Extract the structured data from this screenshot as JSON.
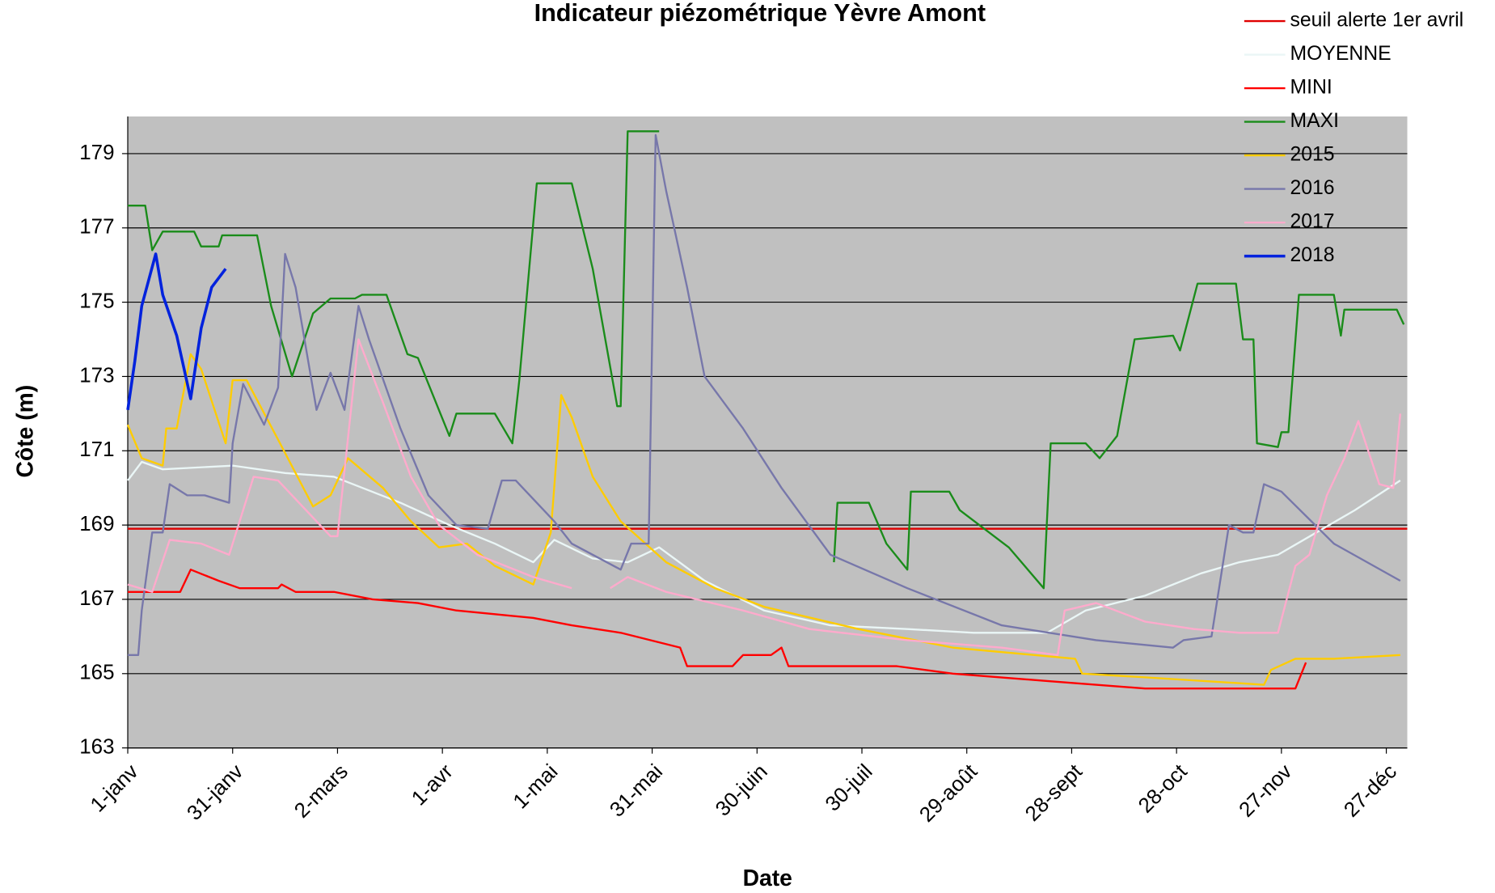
{
  "chart_data": {
    "type": "line",
    "title": "Indicateur piézométrique Yèvre Amont",
    "xlabel": "Date",
    "ylabel": "Côte (m)",
    "xlim": [
      0,
      366
    ],
    "ylim": [
      163,
      180
    ],
    "xticks": [
      {
        "value": 0,
        "label": "1-janv"
      },
      {
        "value": 30,
        "label": "31-janv"
      },
      {
        "value": 60,
        "label": "2-mars"
      },
      {
        "value": 90,
        "label": "1-avr"
      },
      {
        "value": 120,
        "label": "1-mai"
      },
      {
        "value": 150,
        "label": "31-mai"
      },
      {
        "value": 180,
        "label": "30-juin"
      },
      {
        "value": 210,
        "label": "30-juil"
      },
      {
        "value": 240,
        "label": "29-août"
      },
      {
        "value": 270,
        "label": "28-sept"
      },
      {
        "value": 300,
        "label": "28-oct"
      },
      {
        "value": 330,
        "label": "27-nov"
      },
      {
        "value": 360,
        "label": "27-déc"
      }
    ],
    "yticks": [
      163,
      165,
      167,
      169,
      171,
      173,
      175,
      177,
      179
    ],
    "grid": true,
    "legend": "upper right",
    "series": [
      {
        "name": "seuil alerte 1er avril",
        "color": "#e00000",
        "x": [
          0,
          366
        ],
        "values": [
          168.9,
          168.9
        ]
      },
      {
        "name": "MOYENNE",
        "color": "#eaf6f6",
        "x": [
          0,
          4,
          10,
          30,
          45,
          59,
          78,
          92,
          105,
          116,
          122,
          133,
          143,
          152,
          165,
          182,
          201,
          223,
          242,
          263,
          274,
          291,
          307,
          318,
          329,
          340,
          351,
          364
        ],
        "values": [
          170.2,
          170.7,
          170.5,
          170.6,
          170.4,
          170.3,
          169.6,
          169.0,
          168.5,
          168.0,
          168.6,
          168.1,
          168.0,
          168.4,
          167.5,
          166.7,
          166.3,
          166.2,
          166.1,
          166.1,
          166.7,
          167.1,
          167.7,
          168.0,
          168.2,
          168.8,
          169.4,
          170.2
        ]
      },
      {
        "name": "MINI",
        "color": "#ff0000",
        "x": [
          0,
          15,
          18,
          26,
          32,
          43,
          44,
          48,
          59,
          70,
          83,
          94,
          105,
          116,
          127,
          141,
          158,
          160,
          173,
          176,
          184,
          187,
          189,
          209,
          220,
          236,
          263,
          291,
          318,
          334,
          337
        ],
        "values": [
          167.2,
          167.2,
          167.8,
          167.5,
          167.3,
          167.3,
          167.4,
          167.2,
          167.2,
          167.0,
          166.9,
          166.7,
          166.6,
          166.5,
          166.3,
          166.1,
          165.7,
          165.2,
          165.2,
          165.5,
          165.5,
          165.7,
          165.2,
          165.2,
          165.2,
          165.0,
          164.8,
          164.6,
          164.6,
          164.6,
          165.3
        ]
      },
      {
        "name": "MAXI",
        "color": "#1a8c1a",
        "x": [
          0,
          5,
          7,
          10,
          19,
          21,
          26,
          27,
          37,
          41,
          47,
          53,
          58,
          65,
          67,
          74,
          80,
          83,
          92,
          94,
          105,
          110,
          112,
          117,
          127,
          133,
          140,
          141,
          143,
          152,
          177,
          202,
          203,
          212,
          217,
          223,
          224,
          235,
          238,
          252,
          262,
          264,
          274,
          278,
          283,
          288,
          299,
          301,
          306,
          317,
          319,
          322,
          323,
          329,
          330,
          332,
          335,
          345,
          347,
          348,
          363,
          365
        ],
        "values": [
          177.6,
          177.6,
          176.4,
          176.9,
          176.9,
          176.5,
          176.5,
          176.8,
          176.8,
          174.9,
          173.0,
          174.7,
          175.1,
          175.1,
          175.2,
          175.2,
          173.6,
          173.5,
          171.4,
          172.0,
          172.0,
          171.2,
          172.9,
          178.2,
          178.2,
          175.9,
          172.2,
          172.2,
          179.6,
          179.6,
          null,
          168.0,
          169.6,
          169.6,
          168.5,
          167.8,
          169.9,
          169.9,
          169.4,
          168.4,
          167.3,
          171.2,
          171.2,
          170.8,
          171.4,
          174.0,
          174.1,
          173.7,
          175.5,
          175.5,
          174.0,
          174.0,
          171.2,
          171.1,
          171.5,
          171.5,
          175.2,
          175.2,
          174.1,
          174.8,
          174.8,
          174.4
        ]
      },
      {
        "name": "2015",
        "color": "#ffcc00",
        "x": [
          0,
          4,
          10,
          11,
          14,
          18,
          21,
          28,
          30,
          34,
          43,
          53,
          58,
          63,
          73,
          81,
          89,
          97,
          105,
          116,
          121,
          124,
          127,
          133,
          141,
          154,
          168,
          182,
          209,
          236,
          271,
          273,
          291,
          325,
          327,
          334,
          345,
          364
        ],
        "values": [
          171.7,
          170.8,
          170.6,
          171.6,
          171.6,
          173.6,
          173.2,
          171.2,
          172.9,
          172.9,
          171.3,
          169.5,
          169.8,
          170.8,
          170.0,
          169.1,
          168.4,
          168.5,
          167.9,
          167.4,
          168.8,
          172.5,
          171.9,
          170.3,
          169.1,
          168.0,
          167.3,
          166.8,
          166.2,
          165.7,
          165.4,
          165.0,
          164.9,
          164.7,
          165.1,
          165.4,
          165.4,
          165.5
        ]
      },
      {
        "name": "2016",
        "color": "#7777aa",
        "x": [
          0,
          3,
          4,
          7,
          10,
          12,
          17,
          22,
          29,
          30,
          33,
          39,
          43,
          45,
          48,
          54,
          58,
          62,
          66,
          69,
          78,
          86,
          94,
          103,
          107,
          111,
          122,
          127,
          141,
          144,
          149,
          151,
          154,
          160,
          165,
          176,
          187,
          201,
          223,
          250,
          277,
          299,
          302,
          310,
          315,
          319,
          322,
          325,
          330,
          345,
          364
        ],
        "values": [
          165.5,
          165.5,
          166.7,
          168.8,
          168.8,
          170.1,
          169.8,
          169.8,
          169.6,
          171.2,
          172.8,
          171.7,
          172.7,
          176.3,
          175.4,
          172.1,
          173.1,
          172.1,
          174.9,
          174.0,
          171.6,
          169.8,
          169.0,
          168.9,
          170.2,
          170.2,
          169.1,
          168.5,
          167.8,
          168.5,
          168.5,
          179.5,
          178.0,
          175.4,
          173.0,
          171.6,
          170.0,
          168.2,
          167.3,
          166.3,
          165.9,
          165.7,
          165.9,
          166.0,
          169.0,
          168.8,
          168.8,
          170.1,
          169.9,
          168.5,
          167.5
        ]
      },
      {
        "name": "2017",
        "color": "#ffaacc",
        "x": [
          0,
          7,
          12,
          21,
          29,
          36,
          43,
          50,
          58,
          60,
          66,
          73,
          81,
          89,
          100,
          116,
          127,
          132,
          138,
          143,
          154,
          176,
          195,
          223,
          250,
          266,
          268,
          277,
          291,
          305,
          318,
          329,
          334,
          338,
          343,
          348,
          352,
          358,
          362,
          364
        ],
        "values": [
          167.4,
          167.2,
          168.6,
          168.5,
          168.2,
          170.3,
          170.2,
          169.5,
          168.7,
          168.7,
          174.0,
          172.3,
          170.3,
          169.0,
          168.2,
          167.6,
          167.3,
          null,
          167.3,
          167.6,
          167.2,
          166.7,
          166.2,
          165.9,
          165.7,
          165.5,
          166.7,
          166.9,
          166.4,
          166.2,
          166.1,
          166.1,
          167.9,
          168.2,
          169.8,
          170.8,
          171.8,
          170.1,
          170.0,
          172.0
        ]
      },
      {
        "name": "2018",
        "color": "#0022dd",
        "width": 3,
        "x": [
          0,
          2,
          4,
          8,
          10,
          14,
          18,
          21,
          24,
          28
        ],
        "values": [
          172.1,
          173.4,
          174.9,
          176.3,
          175.2,
          174.1,
          172.4,
          174.3,
          175.4,
          175.9
        ]
      }
    ]
  }
}
